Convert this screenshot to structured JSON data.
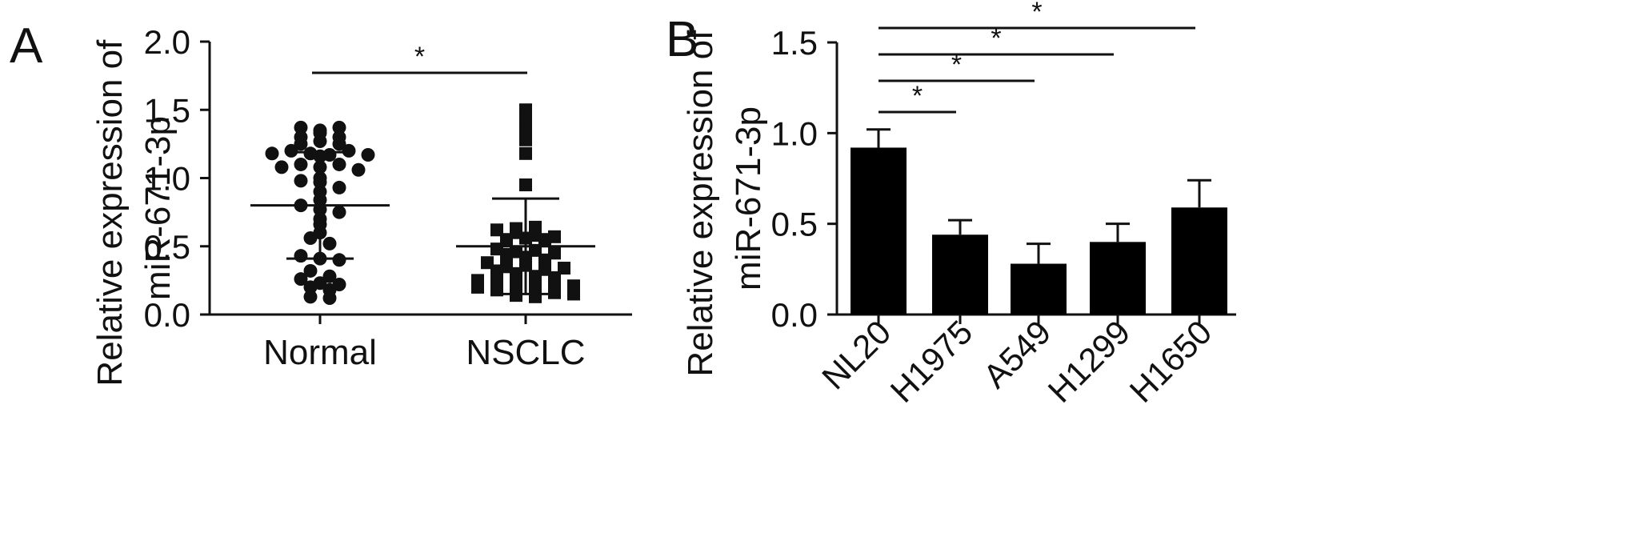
{
  "chart_data": [
    {
      "type": "scatter",
      "panel_label": "A",
      "ylabel": "Relative expression of miR-671-3p",
      "ylabel_lines": [
        "Relative expression of",
        "miR-671-3p"
      ],
      "ylim": [
        0,
        2.0
      ],
      "yticks": [
        "0.0",
        "0.5",
        "1.0",
        "1.5",
        "2.0"
      ],
      "categories": [
        "Normal",
        "NSCLC"
      ],
      "series": [
        {
          "category": "Normal",
          "marker": "circle",
          "mean": 0.8,
          "sd_upper": 1.19,
          "sd_lower": 0.41,
          "values": [
            1.37,
            1.35,
            1.37,
            1.3,
            1.33,
            1.3,
            1.25,
            1.27,
            1.25,
            1.18,
            1.2,
            1.18,
            1.17,
            1.2,
            1.16,
            1.17,
            1.08,
            1.1,
            1.08,
            1.1,
            1.06,
            0.98,
            1.0,
            0.97,
            0.93,
            0.9,
            0.84,
            0.8,
            0.77,
            0.75,
            0.7,
            0.66,
            0.6,
            0.56,
            0.52,
            0.43,
            0.41,
            0.4,
            0.32,
            0.26,
            0.28,
            0.23,
            0.22,
            0.2,
            0.18,
            0.13,
            0.12
          ]
        },
        {
          "category": "NSCLC",
          "marker": "square",
          "mean": 0.5,
          "sd_upper": 0.85,
          "sd_lower": 0.15,
          "values": [
            1.5,
            1.43,
            1.35,
            1.28,
            1.32,
            1.18,
            0.95,
            0.63,
            0.62,
            0.64,
            0.6,
            0.55,
            0.56,
            0.58,
            0.57,
            0.55,
            0.48,
            0.46,
            0.47,
            0.45,
            0.44,
            0.42,
            0.4,
            0.38,
            0.35,
            0.36,
            0.33,
            0.32,
            0.34,
            0.3,
            0.28,
            0.27,
            0.25,
            0.26,
            0.24,
            0.22,
            0.23,
            0.2,
            0.21,
            0.18,
            0.19,
            0.17,
            0.16,
            0.15,
            0.14,
            0.13
          ]
        }
      ],
      "annotations": [
        {
          "from": "Normal",
          "to": "NSCLC",
          "text": "*"
        }
      ]
    },
    {
      "type": "bar",
      "panel_label": "B",
      "ylabel": "Relative expression of miR-671-3p",
      "ylabel_lines": [
        "Relative expression of",
        "miR-671-3p"
      ],
      "ylim": [
        0,
        1.5
      ],
      "yticks": [
        "0.0",
        "0.5",
        "1.0",
        "1.5"
      ],
      "categories": [
        "NL20",
        "H1975",
        "A549",
        "H1299",
        "H1650"
      ],
      "values": [
        0.92,
        0.44,
        0.28,
        0.4,
        0.59
      ],
      "errors": [
        0.1,
        0.08,
        0.11,
        0.1,
        0.15
      ],
      "annotations": [
        {
          "from": "NL20",
          "to": "H1975",
          "text": "*"
        },
        {
          "from": "NL20",
          "to": "A549",
          "text": "*"
        },
        {
          "from": "NL20",
          "to": "H1299",
          "text": "*"
        },
        {
          "from": "NL20",
          "to": "H1650",
          "text": "*"
        }
      ]
    }
  ]
}
